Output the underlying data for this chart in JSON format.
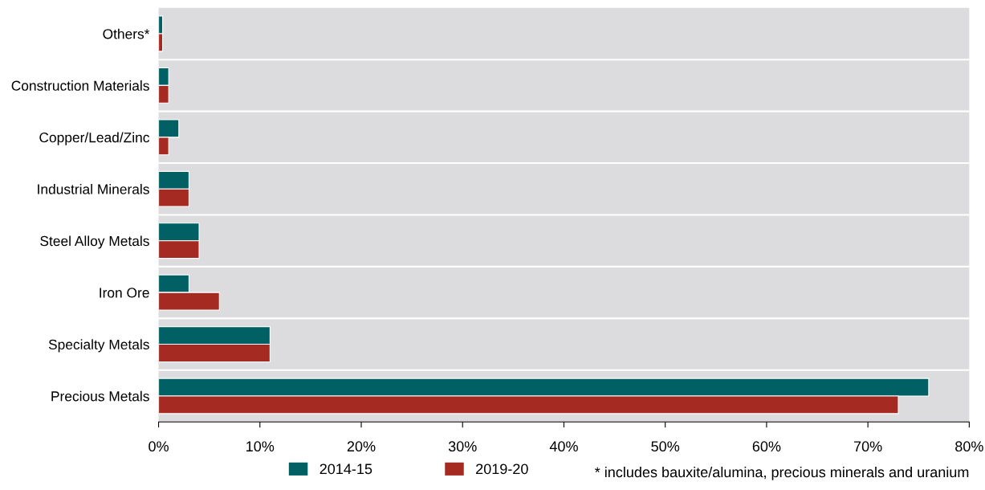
{
  "chart_data": {
    "type": "bar",
    "orientation": "horizontal",
    "categories": [
      "Others*",
      "Construction Materials",
      "Copper/Lead/Zinc",
      "Industrial Minerals",
      "Steel Alloy Metals",
      "Iron Ore",
      "Specialty Metals",
      "Precious Metals"
    ],
    "series": [
      {
        "name": "2014-15",
        "color": "#006064",
        "values": [
          0.4,
          1,
          2,
          3,
          4,
          3,
          11,
          76
        ]
      },
      {
        "name": "2019-20",
        "color": "#a52a22",
        "values": [
          0.4,
          1,
          1,
          3,
          4,
          6,
          11,
          73
        ]
      }
    ],
    "xlim": [
      0,
      80
    ],
    "xticks": [
      {
        "value": 0,
        "label": "0%"
      },
      {
        "value": 10,
        "label": "10%"
      },
      {
        "value": 20,
        "label": "20%"
      },
      {
        "value": 30,
        "label": "30%"
      },
      {
        "value": 40,
        "label": "40%"
      },
      {
        "value": 50,
        "label": "50%"
      },
      {
        "value": 60,
        "label": "60%"
      },
      {
        "value": 70,
        "label": "70%"
      },
      {
        "value": 80,
        "label": "80%"
      }
    ],
    "grid": "y",
    "legend": "bottom",
    "annotations": [
      "* includes bauxite/alumina, precious minerals and uranium"
    ]
  }
}
